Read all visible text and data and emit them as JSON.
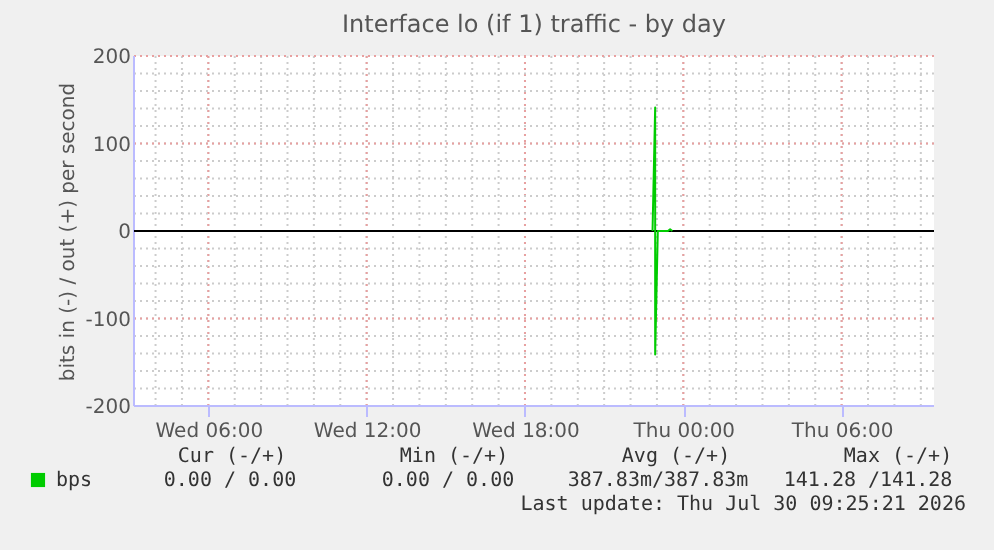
{
  "chart_data": {
    "type": "line",
    "title": "Interface lo (if 1) traffic - by day",
    "ylabel": "bits in (-) / out (+) per second",
    "xlim": [
      "2026-07-29T03:11",
      "2026-07-30T09:30"
    ],
    "xticks": [
      {
        "value": "2026-07-29T06:00",
        "label": "Wed 06:00"
      },
      {
        "value": "2026-07-29T12:00",
        "label": "Wed 12:00"
      },
      {
        "value": "2026-07-29T18:00",
        "label": "Wed 18:00"
      },
      {
        "value": "2026-07-30T00:00",
        "label": "Thu 00:00"
      },
      {
        "value": "2026-07-30T06:00",
        "label": "Thu 06:00"
      }
    ],
    "ylim": [
      -200,
      200
    ],
    "yticks": [
      -200,
      -100,
      0,
      100,
      200
    ],
    "grid": true,
    "legend": "bottom left",
    "series": [
      {
        "name": "bps",
        "color": "#00cc00",
        "x": [
          "2026-07-29T22:50",
          "2026-07-29T22:56",
          "2026-07-29T22:56",
          "2026-07-29T23:02",
          "2026-07-29T23:25",
          "2026-07-29T23:30",
          "2026-07-29T23:35"
        ],
        "values": [
          0,
          141,
          -141,
          0,
          0,
          2,
          0
        ]
      }
    ],
    "ref_lines": [
      {
        "axis": "y",
        "value": 0,
        "color": "#000000"
      }
    ],
    "annotations": [
      "Cur (-/+)",
      "Min (-/+)",
      "Avg (-/+)",
      "Max (-/+)",
      "0.00 /   0.00",
      "0.00 /   0.00",
      "387.83m/387.83m",
      "141.28 /141.28",
      "Last update: Thu Jul 30 09:25:21 2026"
    ]
  }
}
